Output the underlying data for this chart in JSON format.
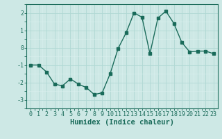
{
  "x": [
    0,
    1,
    2,
    3,
    4,
    5,
    6,
    7,
    8,
    9,
    10,
    11,
    12,
    13,
    14,
    15,
    16,
    17,
    18,
    19,
    20,
    21,
    22,
    23
  ],
  "y": [
    -1.0,
    -1.0,
    -1.4,
    -2.1,
    -2.2,
    -1.8,
    -2.1,
    -2.3,
    -2.7,
    -2.6,
    -1.5,
    -0.05,
    0.85,
    2.0,
    1.75,
    -0.35,
    1.7,
    2.1,
    1.4,
    0.3,
    -0.25,
    -0.2,
    -0.2,
    -0.35
  ],
  "line_color": "#1a6b5a",
  "bg_color": "#cde8e5",
  "grid_major_color": "#b0d8d4",
  "grid_minor_color": "#daf0ee",
  "xlabel": "Humidex (Indice chaleur)",
  "ylim": [
    -3.5,
    2.5
  ],
  "xlim": [
    -0.5,
    23.5
  ],
  "yticks": [
    -3,
    -2,
    -1,
    0,
    1,
    2
  ],
  "xticks": [
    0,
    1,
    2,
    3,
    4,
    5,
    6,
    7,
    8,
    9,
    10,
    11,
    12,
    13,
    14,
    15,
    16,
    17,
    18,
    19,
    20,
    21,
    22,
    23
  ],
  "tick_fontsize": 6,
  "xlabel_fontsize": 7.5,
  "marker_size": 2.5,
  "line_width": 1.0
}
